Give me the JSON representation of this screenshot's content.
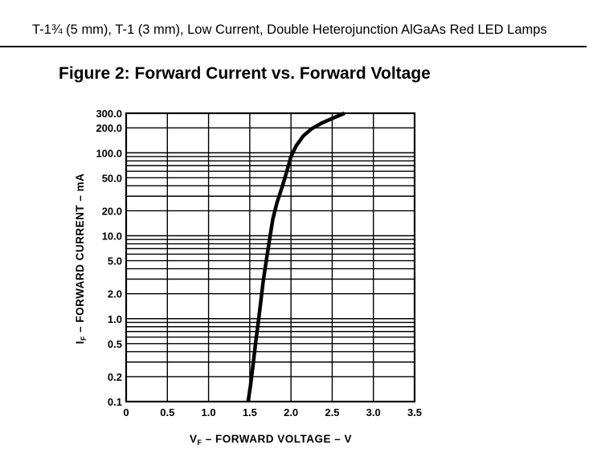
{
  "document": {
    "header": "T-1¾ (5 mm), T-1 (3 mm), Low Current, Double Heterojunction AlGaAs Red LED Lamps",
    "figure_title": "Figure 2:  Forward Current vs. Forward Voltage"
  },
  "chart_data": {
    "type": "line",
    "title": "Figure 2:  Forward Current vs. Forward Voltage",
    "xlabel": "VF – FORWARD VOLTAGE – V",
    "xlabel_main": "V",
    "xlabel_sub": "F",
    "xlabel_rest": " – FORWARD VOLTAGE – V",
    "ylabel": "IF – FORWARD CURRENT – mA",
    "ylabel_main": "I",
    "ylabel_sub": "F",
    "ylabel_rest": " – FORWARD CURRENT – mA",
    "xlim": [
      0,
      3.5
    ],
    "ylim": [
      0.1,
      300
    ],
    "y_scale": "log",
    "grid": true,
    "x_ticks": [
      "0",
      "0.5",
      "1.0",
      "1.5",
      "2.0",
      "2.5",
      "3.0",
      "3.5"
    ],
    "x_tick_values": [
      0,
      0.5,
      1.0,
      1.5,
      2.0,
      2.5,
      3.0,
      3.5
    ],
    "y_ticks": [
      "0.1",
      "0.2",
      "0.5",
      "1.0",
      "2.0",
      "5.0",
      "10.0",
      "20.0",
      "50.0",
      "100.0",
      "200.0",
      "300.0"
    ],
    "y_tick_values": [
      0.1,
      0.2,
      0.5,
      1.0,
      2.0,
      5.0,
      10.0,
      20.0,
      50.0,
      100.0,
      200.0,
      300.0
    ],
    "series": [
      {
        "x": [
          1.48,
          1.51,
          1.54,
          1.57,
          1.6,
          1.63,
          1.66,
          1.7,
          1.74,
          1.78,
          1.83,
          1.89,
          1.95,
          2.0,
          2.06,
          2.15,
          2.25,
          2.38,
          2.52,
          2.65
        ],
        "y": [
          0.1,
          0.16,
          0.28,
          0.5,
          0.85,
          1.5,
          2.7,
          5.0,
          9.0,
          16.0,
          25.0,
          38.0,
          60.0,
          90.0,
          120.0,
          160.0,
          195.0,
          230.0,
          265.0,
          300.0
        ]
      }
    ]
  }
}
